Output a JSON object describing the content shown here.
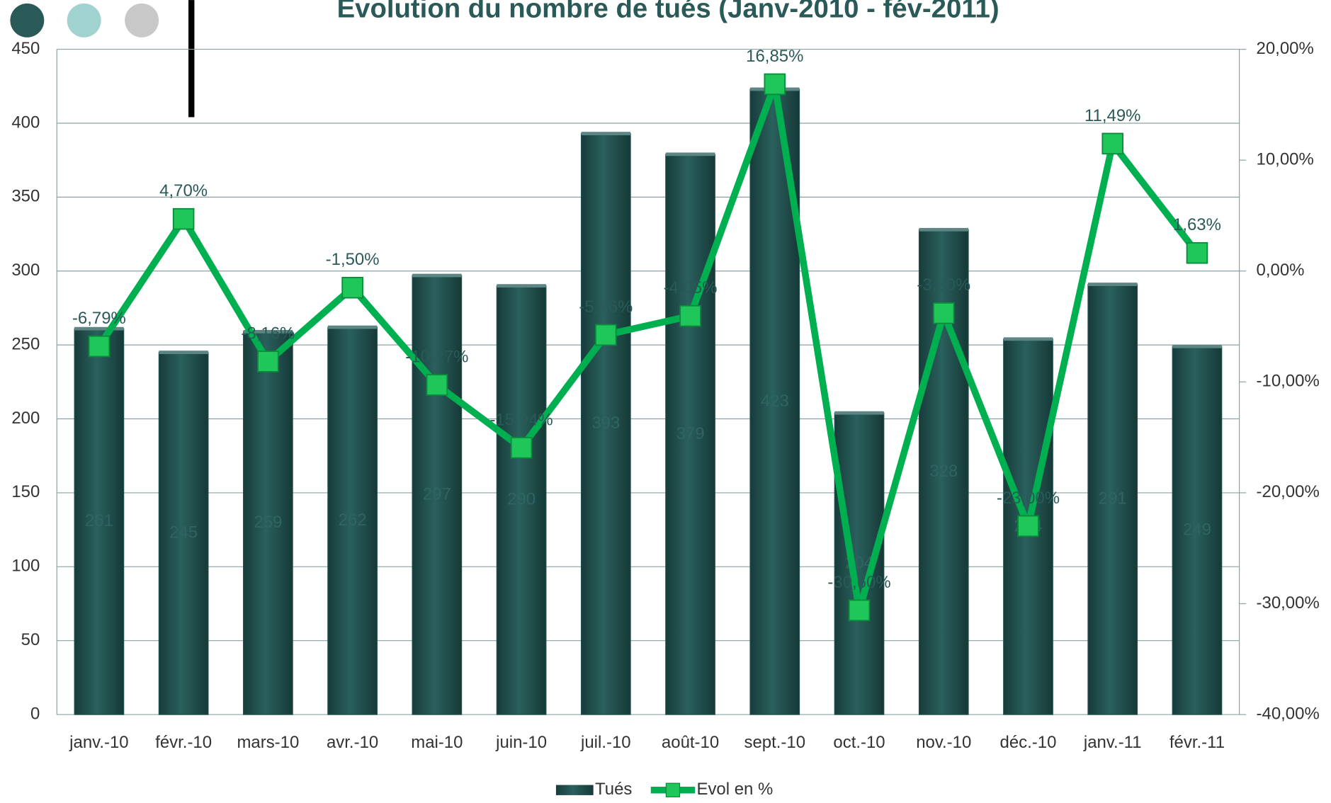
{
  "chart_data": {
    "type": "combo",
    "title": "Evolution du nombre de tués (Janv-2010 - fév-2011)",
    "categories": [
      "janv.-10",
      "févr.-10",
      "mars-10",
      "avr.-10",
      "mai-10",
      "juin-10",
      "juil.-10",
      "août-10",
      "sept.-10",
      "oct.-10",
      "nov.-10",
      "déc.-10",
      "janv.-11",
      "févr.-11"
    ],
    "series": [
      {
        "name": "Tués",
        "type": "bar",
        "color": "#1f4e4c",
        "values": [
          261,
          245,
          259,
          262,
          297,
          290,
          393,
          379,
          423,
          204,
          328,
          254,
          291,
          249
        ]
      },
      {
        "name": "Evol en %",
        "type": "line",
        "axis": "y2",
        "color": "#00b050",
        "values": [
          -6.79,
          4.7,
          -8.16,
          -1.5,
          -10.27,
          -15.94,
          -5.76,
          -4.05,
          16.85,
          -30.6,
          -3.8,
          -23.0,
          11.49,
          1.63
        ],
        "value_labels": [
          "-6,79%",
          "4,70%",
          "-8,16%",
          "-1,50%",
          "-10,27%",
          "-15,94%",
          "-5,76%",
          "-4,05%",
          "16,85%",
          "-30,60%",
          "-3,80%",
          "-23,00%",
          "11,49%",
          "1,63%"
        ]
      }
    ],
    "ylim": [
      0,
      450
    ],
    "yticks": [
      0,
      50,
      100,
      150,
      200,
      250,
      300,
      350,
      400,
      450
    ],
    "y2lim": [
      -40,
      20
    ],
    "y2ticks": [
      {
        "value": -40,
        "label": "-40,00%"
      },
      {
        "value": -30,
        "label": "-30,00%"
      },
      {
        "value": -20,
        "label": "-20,00%"
      },
      {
        "value": -10,
        "label": "-10,00%"
      },
      {
        "value": 0,
        "label": "0,00%"
      },
      {
        "value": 10,
        "label": "10,00%"
      },
      {
        "value": 20,
        "label": "20,00%"
      }
    ],
    "grid": true,
    "legend": "bottom"
  }
}
